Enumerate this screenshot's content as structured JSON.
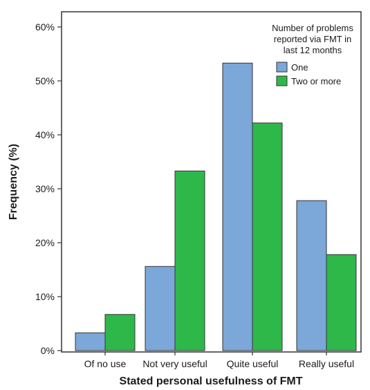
{
  "chart_data": {
    "type": "bar",
    "title": "",
    "xlabel": "Stated personal usefulness of FMT",
    "ylabel": "Frequency (%)",
    "ylim": [
      0,
      65
    ],
    "yticks": [
      0,
      10,
      20,
      30,
      40,
      50,
      60
    ],
    "ytick_labels": [
      "0%",
      "10%",
      "20%",
      "30%",
      "40%",
      "50%",
      "60%"
    ],
    "categories": [
      "Of no use",
      "Not very useful",
      "Quite useful",
      "Really useful"
    ],
    "series": [
      {
        "name": "One",
        "color": "#7ba7d9",
        "values": [
          3.3,
          15.6,
          53.3,
          27.8
        ]
      },
      {
        "name": "Two or more",
        "color": "#2fb84a",
        "values": [
          6.7,
          33.3,
          42.2,
          17.8
        ]
      }
    ],
    "grid": false,
    "legend": {
      "title_lines": [
        "Number of problems",
        "reported via FMT in",
        "last 12 months"
      ],
      "placement": "top-right"
    }
  }
}
